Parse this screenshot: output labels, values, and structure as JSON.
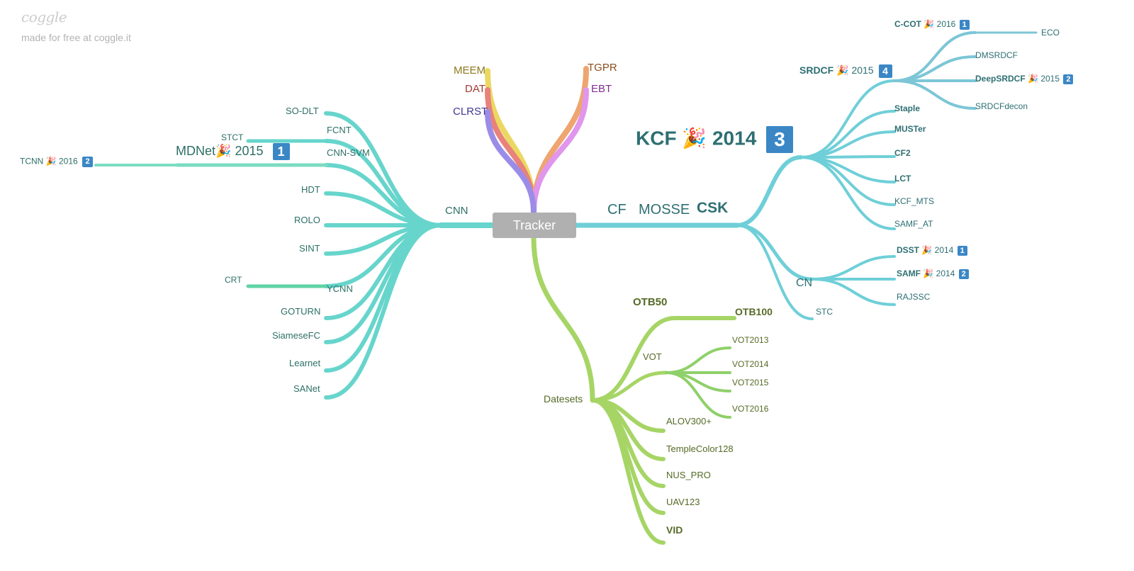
{
  "branding": {
    "logo": "coggle",
    "tagline": "made for free at coggle.it"
  },
  "colors": {
    "cnn": "#67d5cc",
    "cf": "#6fcfd8",
    "srdcf": "#7cc6d6",
    "datasets": "#a6d566",
    "vot_leaf": "#8fd06a",
    "meem": "#ebd862",
    "dat": "#e8827a",
    "clrst": "#9b8ce8",
    "tgpr": "#eea56f",
    "ebt": "#e096ec",
    "text_cnn": "#2d6f66",
    "text_cf": "#2e6f73",
    "text_ds": "#556a26",
    "badge": "#3b87c6"
  },
  "root": {
    "label": "Tracker"
  },
  "top": {
    "meem": "MEEM",
    "dat": "DAT",
    "clrst": "CLRST",
    "tgpr": "TGPR",
    "ebt": "EBT"
  },
  "cnn": {
    "label": "CNN",
    "so_dlt": "SO-DLT",
    "fcnt": "FCNT",
    "stct": "STCT",
    "cnn_svm": "CNN-SVM",
    "mdnet": {
      "name": "MDNet",
      "year": "2015",
      "badge": "1"
    },
    "tcnn": {
      "name": "TCNN",
      "year": "2016",
      "badge": "2"
    },
    "hdt": "HDT",
    "rolo": "ROLO",
    "sint": "SINT",
    "crt": "CRT",
    "ycnn": "YCNN",
    "goturn": "GOTURN",
    "siamesefc": "SiameseFC",
    "learnet": "Learnet",
    "sanet": "SANet"
  },
  "cf": {
    "label": "CF",
    "mosse": "MOSSE",
    "csk": "CSK",
    "kcf": {
      "name": "KCF",
      "year": "2014",
      "badge": "3"
    },
    "srdcf": {
      "name": "SRDCF",
      "year": "2015",
      "badge": "4"
    },
    "ccot": {
      "name": "C-COT",
      "year": "2016",
      "badge": "1"
    },
    "eco": "ECO",
    "dmsrdcf": "DMSRDCF",
    "deepsrdcf": {
      "name": "DeepSRDCF",
      "year": "2015",
      "badge": "2"
    },
    "srdcfdecon": "SRDCFdecon",
    "staple": "Staple",
    "muster": "MUSTer",
    "cf2": "CF2",
    "lct": "LCT",
    "kcf_mts": "KCF_MTS",
    "samf_at": "SAMF_AT",
    "cn": "CN",
    "dsst": {
      "name": "DSST",
      "year": "2014",
      "badge": "1"
    },
    "samf": {
      "name": "SAMF",
      "year": "2014",
      "badge": "2"
    },
    "rajssc": "RAJSSC",
    "stc": "STC"
  },
  "datasets": {
    "label": "Datesets",
    "otb50": "OTB50",
    "otb100": "OTB100",
    "vot": "VOT",
    "vot2013": "VOT2013",
    "vot2014": "VOT2014",
    "vot2015": "VOT2015",
    "vot2016": "VOT2016",
    "alov": "ALOV300+",
    "tc128": "TempleColor128",
    "nus_pro": "NUS_PRO",
    "uav123": "UAV123",
    "vid": "VID"
  }
}
